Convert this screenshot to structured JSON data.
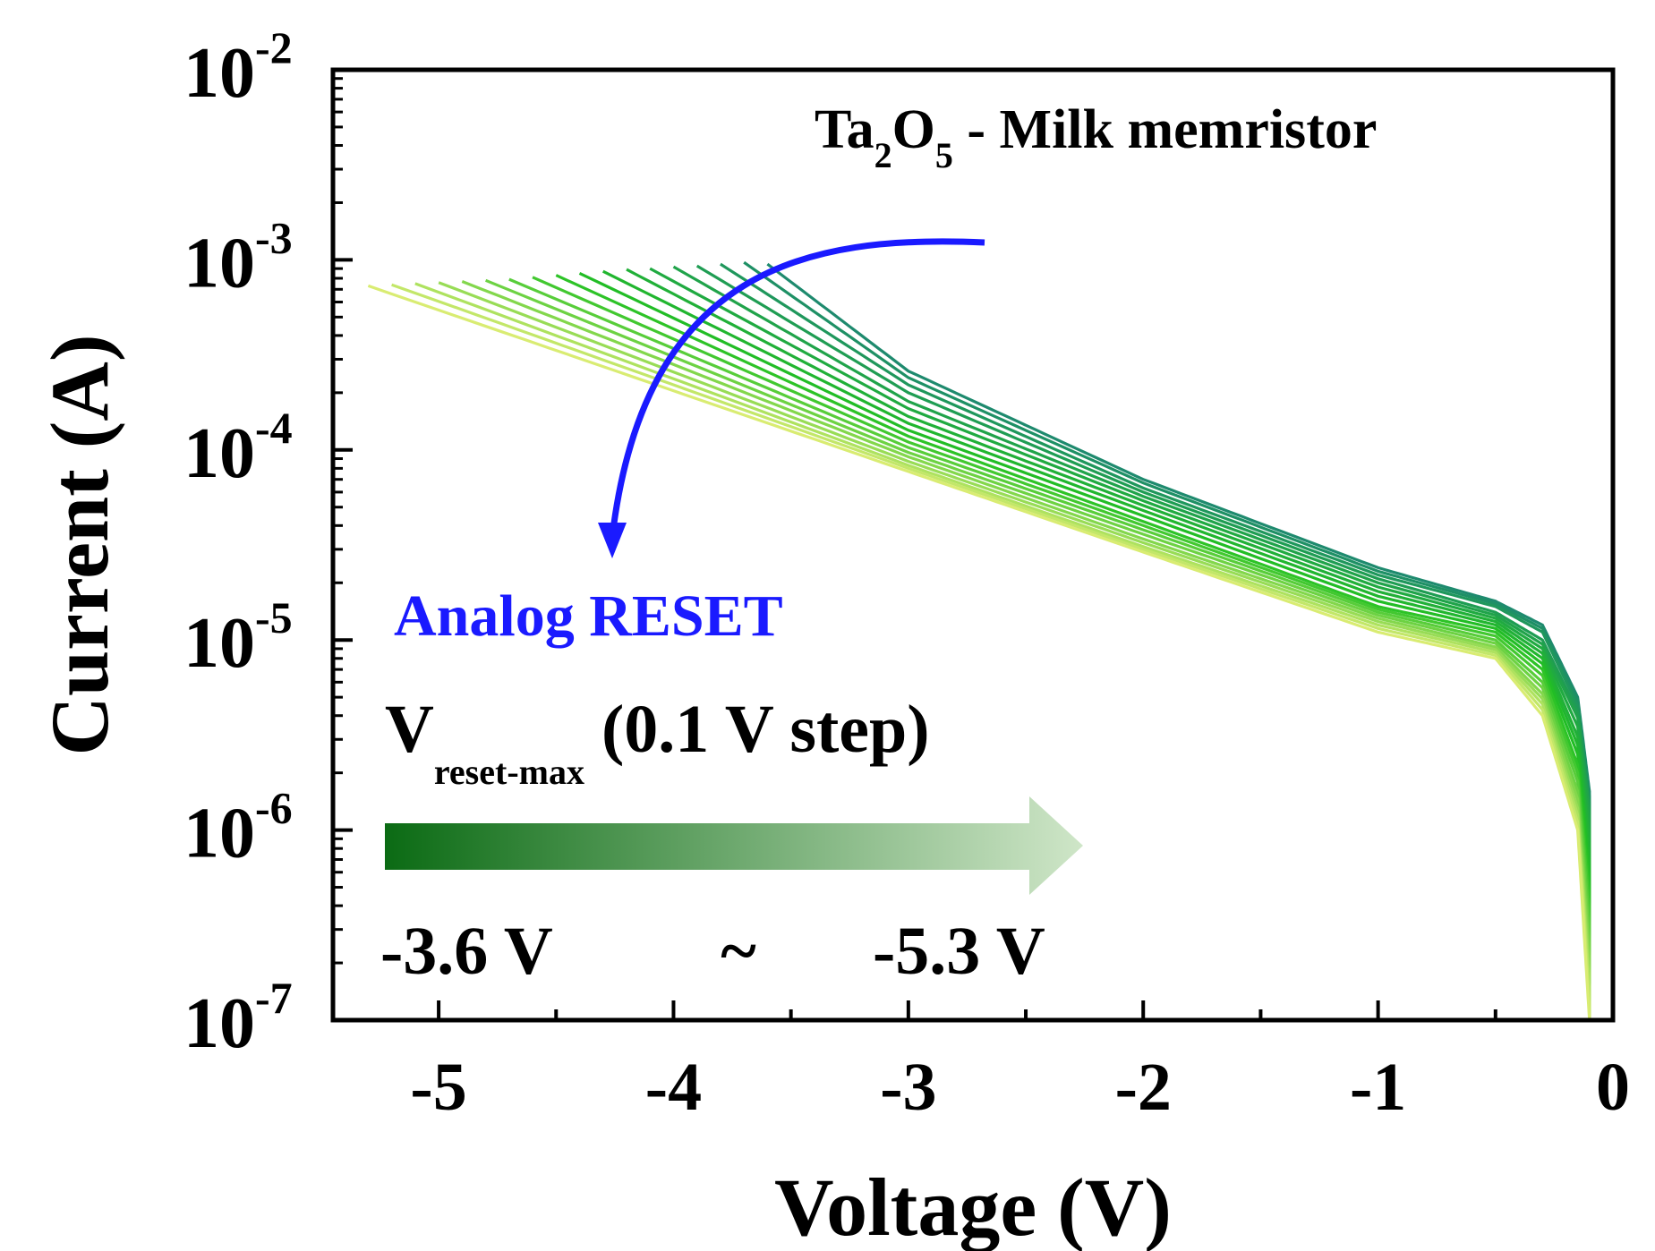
{
  "chart_data": {
    "type": "line",
    "title": "Ta2O5 - Milk memristor",
    "title_parts": {
      "a": "Ta",
      "sub1": "2",
      "b": "O",
      "sub2": "5",
      "rest": " - Milk memristor"
    },
    "xlabel": "Voltage (V)",
    "ylabel": "Current (A)",
    "xlim": [
      -5.45,
      0.0
    ],
    "ylim_log10": [
      -7,
      -2
    ],
    "yscale": "log",
    "x_ticks": [
      {
        "value": -5,
        "label": "-5"
      },
      {
        "value": -4,
        "label": "-4"
      },
      {
        "value": -3,
        "label": "-3"
      },
      {
        "value": -2,
        "label": "-2"
      },
      {
        "value": -1,
        "label": "-1"
      },
      {
        "value": 0,
        "label": "0"
      }
    ],
    "y_ticks": [
      {
        "exp": -2,
        "base": "10",
        "sup": "-2"
      },
      {
        "exp": -3,
        "base": "10",
        "sup": "-3"
      },
      {
        "exp": -4,
        "base": "10",
        "sup": "-4"
      },
      {
        "exp": -5,
        "base": "10",
        "sup": "-5"
      },
      {
        "exp": -6,
        "base": "10",
        "sup": "-6"
      },
      {
        "exp": -7,
        "base": "10",
        "sup": "-7"
      }
    ],
    "sweep_family": {
      "description": "18 RESET I-V sweeps, Vreset-max from -3.6 V to -5.3 V in 0.1 V steps",
      "v_start": -3.6,
      "v_end": -5.3,
      "step": 0.1,
      "count": 18,
      "color_first": "#1e8a6e",
      "color_mid": "#22c022",
      "color_last": "#d9ec72"
    },
    "series": [
      {
        "name": "Vreset-max -3.6 V",
        "vmax": -3.6,
        "points": [
          [
            -0.1,
            1.6e-06
          ],
          [
            -0.15,
            5e-06
          ],
          [
            -0.3,
            1.2e-05
          ],
          [
            -0.5,
            1.6e-05
          ],
          [
            -1.0,
            2.4e-05
          ],
          [
            -2.0,
            7e-05
          ],
          [
            -3.0,
            0.00026
          ],
          [
            -3.6,
            0.00095
          ]
        ]
      },
      {
        "name": "Vreset-max -3.7 V",
        "vmax": -3.7,
        "points": [
          [
            -0.1,
            1.5e-06
          ],
          [
            -0.15,
            4.8e-06
          ],
          [
            -0.3,
            1.15e-05
          ],
          [
            -0.5,
            1.55e-05
          ],
          [
            -1.0,
            2.3e-05
          ],
          [
            -2.0,
            6.7e-05
          ],
          [
            -3.0,
            0.00024
          ],
          [
            -3.7,
            0.00097
          ]
        ]
      },
      {
        "name": "Vreset-max -3.8 V",
        "vmax": -3.8,
        "points": [
          [
            -0.1,
            1.4e-06
          ],
          [
            -0.15,
            4.5e-06
          ],
          [
            -0.3,
            1.1e-05
          ],
          [
            -0.5,
            1.5e-05
          ],
          [
            -1.0,
            2.2e-05
          ],
          [
            -2.0,
            6.3e-05
          ],
          [
            -3.0,
            0.00022
          ],
          [
            -3.8,
            0.00095
          ]
        ]
      },
      {
        "name": "Vreset-max -3.9 V",
        "vmax": -3.9,
        "points": [
          [
            -0.1,
            1.3e-06
          ],
          [
            -0.15,
            4.2e-06
          ],
          [
            -0.3,
            1e-05
          ],
          [
            -0.5,
            1.4e-05
          ],
          [
            -1.0,
            2.1e-05
          ],
          [
            -2.0,
            6e-05
          ],
          [
            -3.0,
            0.0002
          ],
          [
            -3.9,
            0.00093
          ]
        ]
      },
      {
        "name": "Vreset-max -4.0 V",
        "vmax": -4.0,
        "points": [
          [
            -0.1,
            1.2e-06
          ],
          [
            -0.15,
            3.9e-06
          ],
          [
            -0.3,
            9.5e-06
          ],
          [
            -0.5,
            1.35e-05
          ],
          [
            -1.0,
            2e-05
          ],
          [
            -2.0,
            5.7e-05
          ],
          [
            -3.0,
            0.00018
          ],
          [
            -4.0,
            0.00092
          ]
        ]
      },
      {
        "name": "Vreset-max -4.1 V",
        "vmax": -4.1,
        "points": [
          [
            -0.1,
            1e-06
          ],
          [
            -0.15,
            3.5e-06
          ],
          [
            -0.3,
            9e-06
          ],
          [
            -0.5,
            1.3e-05
          ],
          [
            -1.0,
            1.9e-05
          ],
          [
            -2.0,
            5.4e-05
          ],
          [
            -3.0,
            0.000165
          ],
          [
            -4.1,
            0.0009
          ]
        ]
      },
      {
        "name": "Vreset-max -4.2 V",
        "vmax": -4.2,
        "points": [
          [
            -0.1,
            8.5e-07
          ],
          [
            -0.15,
            3.1e-06
          ],
          [
            -0.3,
            8.5e-06
          ],
          [
            -0.5,
            1.25e-05
          ],
          [
            -1.0,
            1.8e-05
          ],
          [
            -2.0,
            5.1e-05
          ],
          [
            -3.0,
            0.00015
          ],
          [
            -4.2,
            0.00089
          ]
        ]
      },
      {
        "name": "Vreset-max -4.3 V",
        "vmax": -4.3,
        "points": [
          [
            -0.1,
            7e-07
          ],
          [
            -0.15,
            2.8e-06
          ],
          [
            -0.3,
            8e-06
          ],
          [
            -0.5,
            1.2e-05
          ],
          [
            -1.0,
            1.7e-05
          ],
          [
            -2.0,
            4.8e-05
          ],
          [
            -3.0,
            0.000138
          ],
          [
            -4.3,
            0.00087
          ]
        ]
      },
      {
        "name": "Vreset-max -4.4 V",
        "vmax": -4.4,
        "points": [
          [
            -0.1,
            5.8e-07
          ],
          [
            -0.15,
            2.5e-06
          ],
          [
            -0.3,
            7.5e-06
          ],
          [
            -0.5,
            1.15e-05
          ],
          [
            -1.0,
            1.6e-05
          ],
          [
            -2.0,
            4.5e-05
          ],
          [
            -3.0,
            0.000127
          ],
          [
            -4.4,
            0.00085
          ]
        ]
      },
      {
        "name": "Vreset-max -4.5 V",
        "vmax": -4.5,
        "points": [
          [
            -0.1,
            4.8e-07
          ],
          [
            -0.15,
            2.2e-06
          ],
          [
            -0.3,
            7e-06
          ],
          [
            -0.5,
            1.1e-05
          ],
          [
            -1.0,
            1.5e-05
          ],
          [
            -2.0,
            4.2e-05
          ],
          [
            -3.0,
            0.000118
          ],
          [
            -4.5,
            0.00083
          ]
        ]
      },
      {
        "name": "Vreset-max -4.6 V",
        "vmax": -4.6,
        "points": [
          [
            -0.1,
            4e-07
          ],
          [
            -0.15,
            2e-06
          ],
          [
            -0.3,
            6.5e-06
          ],
          [
            -0.5,
            1.05e-05
          ],
          [
            -1.0,
            1.45e-05
          ],
          [
            -2.0,
            4e-05
          ],
          [
            -3.0,
            0.00011
          ],
          [
            -4.6,
            0.00081
          ]
        ]
      },
      {
        "name": "Vreset-max -4.7 V",
        "vmax": -4.7,
        "points": [
          [
            -0.1,
            3.3e-07
          ],
          [
            -0.15,
            1.8e-06
          ],
          [
            -0.3,
            6e-06
          ],
          [
            -0.5,
            1e-05
          ],
          [
            -1.0,
            1.4e-05
          ],
          [
            -2.0,
            3.8e-05
          ],
          [
            -3.0,
            0.000103
          ],
          [
            -4.7,
            0.00079
          ]
        ]
      },
      {
        "name": "Vreset-max -4.8 V",
        "vmax": -4.8,
        "points": [
          [
            -0.1,
            2.7e-07
          ],
          [
            -0.15,
            1.6e-06
          ],
          [
            -0.3,
            5.6e-06
          ],
          [
            -0.5,
            9.6e-06
          ],
          [
            -1.0,
            1.35e-05
          ],
          [
            -2.0,
            3.6e-05
          ],
          [
            -3.0,
            9.7e-05
          ],
          [
            -4.8,
            0.00078
          ]
        ]
      },
      {
        "name": "Vreset-max -4.9 V",
        "vmax": -4.9,
        "points": [
          [
            -0.1,
            2.2e-07
          ],
          [
            -0.15,
            1.45e-06
          ],
          [
            -0.3,
            5.2e-06
          ],
          [
            -0.5,
            9.2e-06
          ],
          [
            -1.0,
            1.3e-05
          ],
          [
            -2.0,
            3.4e-05
          ],
          [
            -3.0,
            9.2e-05
          ],
          [
            -4.9,
            0.00077
          ]
        ]
      },
      {
        "name": "Vreset-max -5.0 V",
        "vmax": -5.0,
        "points": [
          [
            -0.1,
            1.8e-07
          ],
          [
            -0.15,
            1.3e-06
          ],
          [
            -0.3,
            4.9e-06
          ],
          [
            -0.5,
            8.9e-06
          ],
          [
            -1.0,
            1.25e-05
          ],
          [
            -2.0,
            3.25e-05
          ],
          [
            -3.0,
            8.7e-05
          ],
          [
            -5.0,
            0.00076
          ]
        ]
      },
      {
        "name": "Vreset-max -5.1 V",
        "vmax": -5.1,
        "points": [
          [
            -0.1,
            1.5e-07
          ],
          [
            -0.15,
            1.2e-06
          ],
          [
            -0.3,
            4.6e-06
          ],
          [
            -0.5,
            8.6e-06
          ],
          [
            -1.0,
            1.2e-05
          ],
          [
            -2.0,
            3.1e-05
          ],
          [
            -3.0,
            8.3e-05
          ],
          [
            -5.1,
            0.00075
          ]
        ]
      },
      {
        "name": "Vreset-max -5.2 V",
        "vmax": -5.2,
        "points": [
          [
            -0.1,
            1.25e-07
          ],
          [
            -0.15,
            1.1e-06
          ],
          [
            -0.3,
            4.3e-06
          ],
          [
            -0.5,
            8.3e-06
          ],
          [
            -1.0,
            1.15e-05
          ],
          [
            -2.0,
            3e-05
          ],
          [
            -3.0,
            8e-05
          ],
          [
            -5.2,
            0.00074
          ]
        ]
      },
      {
        "name": "Vreset-max -5.3 V",
        "vmax": -5.3,
        "points": [
          [
            -0.1,
            1e-07
          ],
          [
            -0.15,
            1e-06
          ],
          [
            -0.3,
            4e-06
          ],
          [
            -0.5,
            8e-06
          ],
          [
            -1.0,
            1.1e-05
          ],
          [
            -2.0,
            2.9e-05
          ],
          [
            -3.0,
            7.7e-05
          ],
          [
            -5.3,
            0.00073
          ]
        ]
      }
    ],
    "annotations": {
      "analog_reset": {
        "text": "Analog RESET",
        "color": "#1a1aff"
      },
      "arrow_color": "#1a1aff",
      "vreset_label": {
        "v": "V",
        "sub": "reset-max",
        "rest": " (0.1 V step)"
      },
      "gradient_arrow": {
        "color_start": "#0b6b14",
        "color_end": "#cfe6c8"
      },
      "range_label": {
        "from": "-3.6 V",
        "sep": "~",
        "to": "-5.3 V"
      }
    }
  }
}
